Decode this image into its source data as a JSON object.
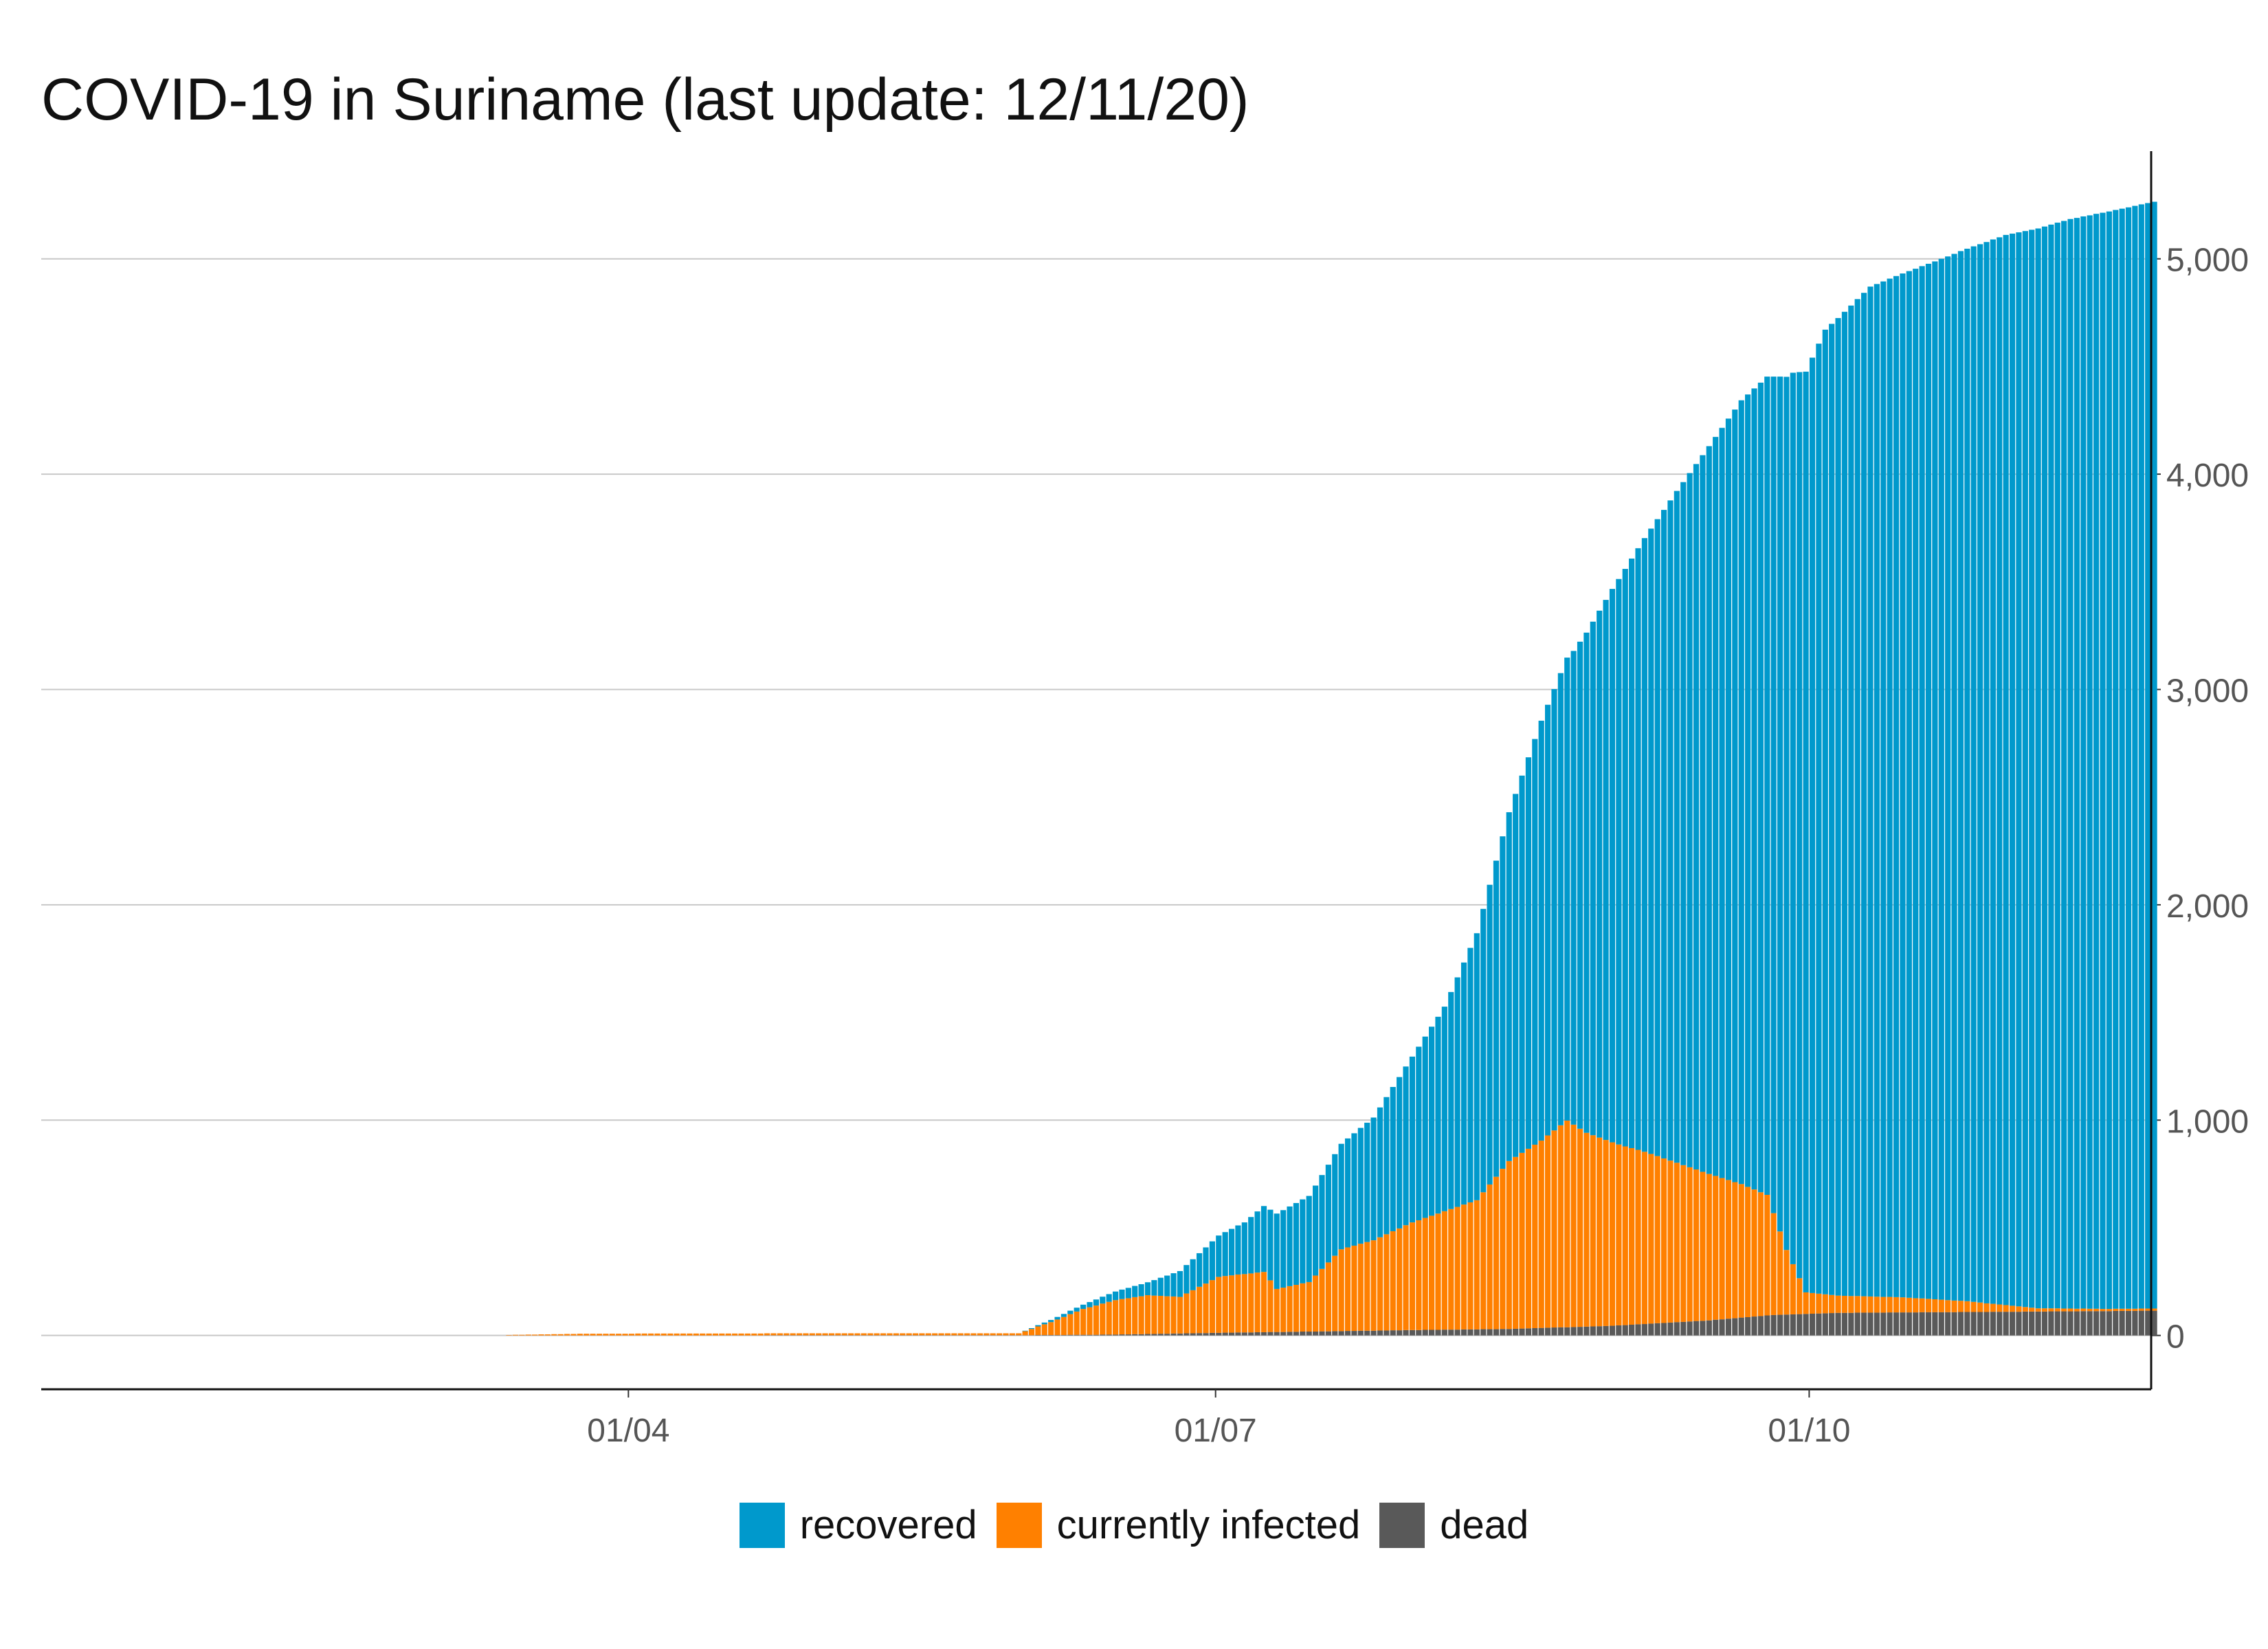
{
  "chart_data": {
    "type": "bar",
    "stacked": true,
    "title": "COVID-19 in Suriname (last update: 12/11/20)",
    "xlabel": "",
    "ylabel": "",
    "x_tick_labels": [
      "01/04",
      "01/07",
      "01/10"
    ],
    "y_ticks": [
      0,
      1000,
      2000,
      3000,
      4000,
      5000
    ],
    "y_tick_labels": [
      "0",
      "1,000",
      "2,000",
      "3,000",
      "4,000",
      "5,000"
    ],
    "y_axis_position": "right",
    "ylim": [
      -250,
      5500
    ],
    "grid": "horizontal",
    "legend_position": "bottom",
    "x_start": "2020-01-01",
    "x_end": "2020-11-23",
    "data_start": "2020-03-13",
    "series": [
      {
        "name": "recovered",
        "color": "#0099CC",
        "keyframes": [
          [
            "2020-03-13",
            0
          ],
          [
            "2020-05-31",
            0
          ],
          [
            "2020-06-10",
            20
          ],
          [
            "2020-06-20",
            60
          ],
          [
            "2020-06-30",
            180
          ],
          [
            "2020-07-05",
            240
          ],
          [
            "2020-07-10",
            350
          ],
          [
            "2020-07-15",
            400
          ],
          [
            "2020-07-20",
            490
          ],
          [
            "2020-07-25",
            570
          ],
          [
            "2020-07-31",
            770
          ],
          [
            "2020-08-05",
            950
          ],
          [
            "2020-08-10",
            1240
          ],
          [
            "2020-08-15",
            1620
          ],
          [
            "2020-08-20",
            1950
          ],
          [
            "2020-08-25",
            2200
          ],
          [
            "2020-08-31",
            2570
          ],
          [
            "2020-09-05",
            2850
          ],
          [
            "2020-09-10",
            3120
          ],
          [
            "2020-09-15",
            3380
          ],
          [
            "2020-09-20",
            3640
          ],
          [
            "2020-09-24",
            3800
          ],
          [
            "2020-09-28",
            4140
          ],
          [
            "2020-10-03",
            4480
          ],
          [
            "2020-10-10",
            4690
          ],
          [
            "2020-10-20",
            4820
          ],
          [
            "2020-10-31",
            4970
          ],
          [
            "2020-11-10",
            5060
          ],
          [
            "2020-11-23",
            5140
          ]
        ]
      },
      {
        "name": "currently infected",
        "color": "#FF8000",
        "keyframes": [
          [
            "2020-03-13",
            2
          ],
          [
            "2020-03-25",
            8
          ],
          [
            "2020-04-10",
            9
          ],
          [
            "2020-05-31",
            9
          ],
          [
            "2020-06-05",
            60
          ],
          [
            "2020-06-10",
            120
          ],
          [
            "2020-06-15",
            160
          ],
          [
            "2020-06-20",
            180
          ],
          [
            "2020-06-25",
            170
          ],
          [
            "2020-07-01",
            260
          ],
          [
            "2020-07-08",
            280
          ],
          [
            "2020-07-10",
            200
          ],
          [
            "2020-07-15",
            230
          ],
          [
            "2020-07-20",
            380
          ],
          [
            "2020-07-25",
            420
          ],
          [
            "2020-07-31",
            500
          ],
          [
            "2020-08-05",
            550
          ],
          [
            "2020-08-10",
            600
          ],
          [
            "2020-08-15",
            780
          ],
          [
            "2020-08-20",
            870
          ],
          [
            "2020-08-24",
            960
          ],
          [
            "2020-08-27",
            900
          ],
          [
            "2020-09-01",
            840
          ],
          [
            "2020-09-05",
            800
          ],
          [
            "2020-09-10",
            740
          ],
          [
            "2020-09-15",
            680
          ],
          [
            "2020-09-20",
            620
          ],
          [
            "2020-09-24",
            560
          ],
          [
            "2020-09-27",
            300
          ],
          [
            "2020-09-30",
            100
          ],
          [
            "2020-10-05",
            80
          ],
          [
            "2020-10-15",
            70
          ],
          [
            "2020-10-25",
            50
          ],
          [
            "2020-11-05",
            15
          ],
          [
            "2020-11-15",
            10
          ],
          [
            "2020-11-23",
            10
          ]
        ]
      },
      {
        "name": "dead",
        "color": "#595959",
        "keyframes": [
          [
            "2020-03-13",
            0
          ],
          [
            "2020-05-31",
            1
          ],
          [
            "2020-06-15",
            4
          ],
          [
            "2020-06-30",
            12
          ],
          [
            "2020-07-15",
            18
          ],
          [
            "2020-07-31",
            25
          ],
          [
            "2020-08-15",
            30
          ],
          [
            "2020-08-31",
            45
          ],
          [
            "2020-09-15",
            70
          ],
          [
            "2020-09-25",
            95
          ],
          [
            "2020-10-05",
            105
          ],
          [
            "2020-10-31",
            110
          ],
          [
            "2020-11-23",
            115
          ]
        ]
      }
    ]
  }
}
